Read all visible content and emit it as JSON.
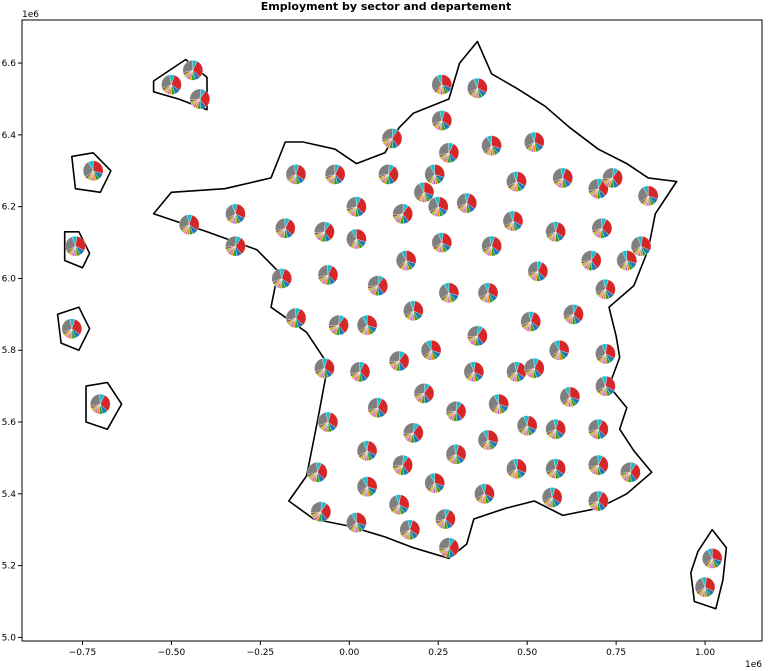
{
  "chart_data": {
    "type": "pie-map",
    "title": "Employment by sector and departement",
    "xlabel": "",
    "ylabel": "",
    "x_offset_label": "1e6",
    "y_offset_label": "1e6",
    "xlim": [
      -0.92,
      1.16
    ],
    "ylim": [
      4.99,
      6.72
    ],
    "x_ticks": [
      -0.75,
      -0.5,
      -0.25,
      0.0,
      0.25,
      0.5,
      0.75,
      1.0
    ],
    "x_tick_labels": [
      "−0.75",
      "−0.50",
      "−0.25",
      "0.00",
      "0.25",
      "0.50",
      "0.75",
      "1.00"
    ],
    "y_ticks": [
      5.0,
      5.2,
      5.4,
      5.6,
      5.8,
      6.0,
      6.2,
      6.4,
      6.6
    ],
    "y_tick_labels": [
      "5.0",
      "5.2",
      "5.4",
      "5.6",
      "5.8",
      "6.0",
      "6.2",
      "6.4",
      "6.6"
    ],
    "grid": false,
    "legend": "none",
    "sector_colors": [
      "#d62728",
      "#1f77b4",
      "#2ca02c",
      "#ff7f0e",
      "#9467bd",
      "#e377c2",
      "#bcbd22",
      "#8c564b",
      "#7f7f7f",
      "#17becf"
    ],
    "sector_shares": [
      0.3,
      0.09,
      0.06,
      0.04,
      0.03,
      0.03,
      0.05,
      0.04,
      0.28,
      0.08
    ],
    "pie_locations": [
      [
        0.26,
        6.54
      ],
      [
        0.36,
        6.53
      ],
      [
        0.26,
        6.44
      ],
      [
        0.28,
        6.35
      ],
      [
        0.12,
        6.39
      ],
      [
        0.4,
        6.37
      ],
      [
        0.52,
        6.38
      ],
      [
        -0.15,
        6.29
      ],
      [
        -0.04,
        6.29
      ],
      [
        0.11,
        6.29
      ],
      [
        0.24,
        6.29
      ],
      [
        0.47,
        6.27
      ],
      [
        0.6,
        6.28
      ],
      [
        0.7,
        6.25
      ],
      [
        0.74,
        6.28
      ],
      [
        0.84,
        6.23
      ],
      [
        -0.32,
        6.18
      ],
      [
        -0.45,
        6.15
      ],
      [
        0.02,
        6.2
      ],
      [
        0.15,
        6.18
      ],
      [
        0.21,
        6.24
      ],
      [
        0.25,
        6.2
      ],
      [
        0.33,
        6.21
      ],
      [
        -0.18,
        6.14
      ],
      [
        -0.07,
        6.13
      ],
      [
        0.02,
        6.11
      ],
      [
        0.46,
        6.16
      ],
      [
        0.58,
        6.13
      ],
      [
        0.71,
        6.14
      ],
      [
        -0.32,
        6.09
      ],
      [
        0.16,
        6.05
      ],
      [
        0.26,
        6.1
      ],
      [
        0.4,
        6.09
      ],
      [
        0.53,
        6.02
      ],
      [
        0.68,
        6.05
      ],
      [
        0.78,
        6.05
      ],
      [
        0.82,
        6.09
      ],
      [
        -0.19,
        6.0
      ],
      [
        -0.06,
        6.01
      ],
      [
        0.08,
        5.98
      ],
      [
        0.28,
        5.96
      ],
      [
        0.39,
        5.96
      ],
      [
        0.72,
        5.97
      ],
      [
        -0.15,
        5.89
      ],
      [
        -0.03,
        5.87
      ],
      [
        0.05,
        5.87
      ],
      [
        0.18,
        5.91
      ],
      [
        0.51,
        5.88
      ],
      [
        0.63,
        5.9
      ],
      [
        0.36,
        5.84
      ],
      [
        0.59,
        5.8
      ],
      [
        0.72,
        5.79
      ],
      [
        -0.07,
        5.75
      ],
      [
        0.03,
        5.74
      ],
      [
        0.14,
        5.77
      ],
      [
        0.23,
        5.8
      ],
      [
        0.35,
        5.74
      ],
      [
        0.47,
        5.74
      ],
      [
        0.52,
        5.75
      ],
      [
        0.21,
        5.68
      ],
      [
        0.62,
        5.67
      ],
      [
        0.72,
        5.7
      ],
      [
        -0.06,
        5.6
      ],
      [
        0.08,
        5.64
      ],
      [
        0.3,
        5.63
      ],
      [
        0.42,
        5.65
      ],
      [
        0.5,
        5.59
      ],
      [
        0.58,
        5.58
      ],
      [
        0.7,
        5.58
      ],
      [
        0.18,
        5.57
      ],
      [
        0.39,
        5.55
      ],
      [
        0.05,
        5.52
      ],
      [
        0.3,
        5.51
      ],
      [
        -0.09,
        5.46
      ],
      [
        0.15,
        5.48
      ],
      [
        0.24,
        5.43
      ],
      [
        0.47,
        5.47
      ],
      [
        0.58,
        5.47
      ],
      [
        0.7,
        5.48
      ],
      [
        0.79,
        5.46
      ],
      [
        0.05,
        5.42
      ],
      [
        0.38,
        5.4
      ],
      [
        0.57,
        5.39
      ],
      [
        0.7,
        5.38
      ],
      [
        -0.08,
        5.35
      ],
      [
        0.02,
        5.32
      ],
      [
        0.14,
        5.37
      ],
      [
        0.17,
        5.3
      ],
      [
        0.27,
        5.33
      ],
      [
        0.28,
        5.25
      ],
      [
        1.02,
        5.22
      ],
      [
        1.0,
        5.14
      ],
      [
        -0.5,
        6.54
      ],
      [
        -0.44,
        6.58
      ],
      [
        -0.42,
        6.5
      ],
      [
        -0.72,
        6.3
      ],
      [
        -0.77,
        6.09
      ],
      [
        -0.78,
        5.86
      ],
      [
        -0.7,
        5.65
      ]
    ]
  },
  "map_outline": {
    "mainland": [
      [
        -0.13,
        6.38
      ],
      [
        -0.04,
        6.36
      ],
      [
        0.02,
        6.32
      ],
      [
        0.1,
        6.35
      ],
      [
        0.14,
        6.42
      ],
      [
        0.18,
        6.46
      ],
      [
        0.28,
        6.5
      ],
      [
        0.31,
        6.6
      ],
      [
        0.36,
        6.66
      ],
      [
        0.4,
        6.57
      ],
      [
        0.47,
        6.53
      ],
      [
        0.55,
        6.48
      ],
      [
        0.62,
        6.42
      ],
      [
        0.7,
        6.36
      ],
      [
        0.78,
        6.32
      ],
      [
        0.84,
        6.28
      ],
      [
        0.92,
        6.27
      ],
      [
        0.86,
        6.18
      ],
      [
        0.84,
        6.08
      ],
      [
        0.8,
        5.98
      ],
      [
        0.73,
        5.92
      ],
      [
        0.75,
        5.84
      ],
      [
        0.76,
        5.78
      ],
      [
        0.73,
        5.7
      ],
      [
        0.78,
        5.64
      ],
      [
        0.76,
        5.58
      ],
      [
        0.8,
        5.52
      ],
      [
        0.85,
        5.46
      ],
      [
        0.78,
        5.4
      ],
      [
        0.7,
        5.36
      ],
      [
        0.6,
        5.34
      ],
      [
        0.52,
        5.38
      ],
      [
        0.44,
        5.36
      ],
      [
        0.35,
        5.33
      ],
      [
        0.33,
        5.26
      ],
      [
        0.28,
        5.22
      ],
      [
        0.18,
        5.25
      ],
      [
        0.1,
        5.28
      ],
      [
        0.0,
        5.31
      ],
      [
        -0.1,
        5.33
      ],
      [
        -0.17,
        5.38
      ],
      [
        -0.12,
        5.45
      ],
      [
        -0.09,
        5.6
      ],
      [
        -0.06,
        5.76
      ],
      [
        -0.12,
        5.85
      ],
      [
        -0.22,
        5.92
      ],
      [
        -0.2,
        6.02
      ],
      [
        -0.26,
        6.08
      ],
      [
        -0.4,
        6.13
      ],
      [
        -0.55,
        6.18
      ],
      [
        -0.5,
        6.24
      ],
      [
        -0.35,
        6.25
      ],
      [
        -0.22,
        6.28
      ],
      [
        -0.18,
        6.38
      ]
    ],
    "corsica": [
      [
        1.02,
        5.3
      ],
      [
        1.06,
        5.25
      ],
      [
        1.05,
        5.16
      ],
      [
        1.03,
        5.08
      ],
      [
        0.97,
        5.1
      ],
      [
        0.96,
        5.18
      ],
      [
        0.98,
        5.24
      ]
    ],
    "islands": [
      [
        [
          -0.55,
          6.55
        ],
        [
          -0.46,
          6.61
        ],
        [
          -0.4,
          6.56
        ],
        [
          -0.4,
          6.47
        ],
        [
          -0.48,
          6.5
        ],
        [
          -0.55,
          6.52
        ]
      ],
      [
        [
          -0.78,
          6.34
        ],
        [
          -0.72,
          6.35
        ],
        [
          -0.67,
          6.3
        ],
        [
          -0.7,
          6.24
        ],
        [
          -0.77,
          6.25
        ]
      ],
      [
        [
          -0.8,
          6.13
        ],
        [
          -0.76,
          6.13
        ],
        [
          -0.73,
          6.07
        ],
        [
          -0.75,
          6.03
        ],
        [
          -0.8,
          6.05
        ]
      ],
      [
        [
          -0.82,
          5.9
        ],
        [
          -0.76,
          5.92
        ],
        [
          -0.73,
          5.86
        ],
        [
          -0.76,
          5.8
        ],
        [
          -0.81,
          5.82
        ]
      ],
      [
        [
          -0.74,
          5.7
        ],
        [
          -0.68,
          5.71
        ],
        [
          -0.64,
          5.65
        ],
        [
          -0.68,
          5.58
        ],
        [
          -0.74,
          5.6
        ]
      ]
    ]
  }
}
